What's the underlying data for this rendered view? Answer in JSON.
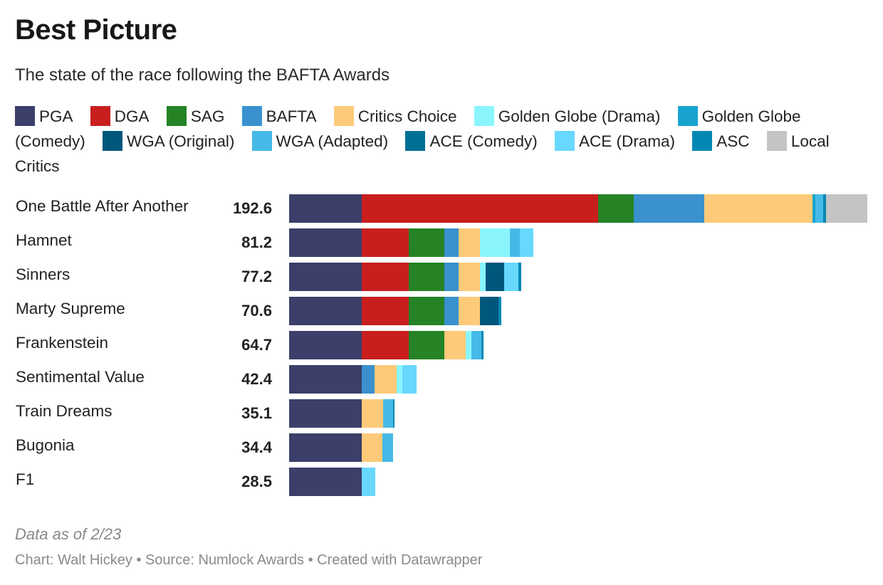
{
  "chart_data": {
    "type": "bar",
    "orientation": "horizontal",
    "stacked": true,
    "title": "Best Picture",
    "subtitle": "The state of the race following the BAFTA Awards",
    "note": "Data as of 2/23",
    "credit": "Chart: Walt Hickey • Source: Numlock Awards • Created with Datawrapper",
    "legend_position": "top",
    "xlim": [
      0,
      192.6
    ],
    "categories": [
      "One Battle After Another",
      "Hamnet",
      "Sinners",
      "Marty Supreme",
      "Frankenstein",
      "Sentimental Value",
      "Train Dreams",
      "Bugonia",
      "F1"
    ],
    "totals": [
      "192.6",
      "81.2",
      "77.2",
      "70.6",
      "64.7",
      "42.4",
      "35.1",
      "34.4",
      "28.5"
    ],
    "series": [
      {
        "name": "PGA",
        "color": "#3b3f69",
        "values": [
          24.2,
          24.2,
          24.2,
          24.2,
          24.2,
          24.2,
          24.2,
          24.2,
          24.2
        ]
      },
      {
        "name": "DGA",
        "color": "#c81e1e",
        "values": [
          78.8,
          15.7,
          15.7,
          15.7,
          15.7,
          0,
          0,
          0,
          0
        ]
      },
      {
        "name": "SAG",
        "color": "#258326",
        "values": [
          11.9,
          11.9,
          11.9,
          11.9,
          11.9,
          0,
          0,
          0,
          0
        ]
      },
      {
        "name": "BAFTA",
        "color": "#3a91cd",
        "values": [
          23.3,
          4.7,
          4.7,
          4.7,
          0,
          4.2,
          0,
          0,
          0
        ]
      },
      {
        "name": "Critics Choice",
        "color": "#fdca79",
        "values": [
          36.1,
          7.1,
          7.1,
          7.1,
          7.1,
          7.5,
          7.1,
          6.9,
          0
        ]
      },
      {
        "name": "Golden Globe (Drama)",
        "color": "#8af5fd",
        "values": [
          0,
          10.0,
          1.9,
          0,
          1.9,
          1.9,
          0,
          0,
          0
        ]
      },
      {
        "name": "Golden Globe (Comedy)",
        "color": "#18a3cf",
        "values": [
          0.9,
          0,
          0,
          0,
          0,
          0,
          0,
          0,
          0
        ]
      },
      {
        "name": "WGA (Original)",
        "color": "#00577b",
        "values": [
          0,
          0,
          6.2,
          6.2,
          0,
          0,
          0,
          0,
          0
        ]
      },
      {
        "name": "WGA (Adapted)",
        "color": "#46bae7",
        "values": [
          2.8,
          3.3,
          0,
          0,
          3.3,
          0,
          3.3,
          3.3,
          0
        ]
      },
      {
        "name": "ACE (Comedy)",
        "color": "#006f96",
        "values": [
          0,
          0,
          0,
          0,
          0,
          0,
          0,
          0,
          0
        ]
      },
      {
        "name": "ACE (Drama)",
        "color": "#68d8fe",
        "values": [
          0,
          4.3,
          4.6,
          0,
          0,
          4.6,
          0,
          0,
          4.3
        ]
      },
      {
        "name": "ASC",
        "color": "#0088b3",
        "values": [
          0.9,
          0,
          0.9,
          0.8,
          0.6,
          0,
          0.5,
          0,
          0
        ]
      },
      {
        "name": "Local Critics",
        "color": "#c4c4c4",
        "values": [
          13.7,
          0,
          0,
          0,
          0,
          0,
          0,
          0,
          0
        ]
      }
    ]
  }
}
